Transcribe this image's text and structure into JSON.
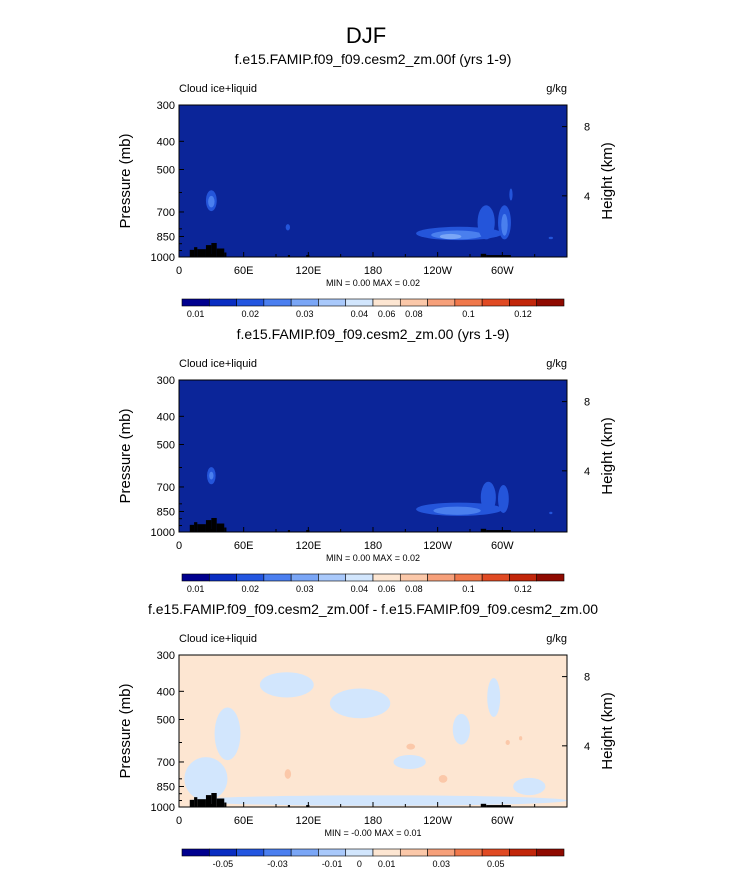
{
  "figure": {
    "title": "DJF"
  },
  "chart_data": [
    {
      "type": "heatmap",
      "title": "f.e15.FAMIP.f09_f09.cesm2_zm.00f (yrs 1-9)",
      "left_label": "Cloud ice+liquid",
      "right_label": "g/kg",
      "ylabel": "Pressure (mb)",
      "y2label": "Height (km)",
      "yticks": [
        "300",
        "400",
        "500",
        "700",
        "850",
        "1000"
      ],
      "y2ticks": [
        "8",
        "4"
      ],
      "xticks": [
        "0",
        "60E",
        "120E",
        "180",
        "120W",
        "60W"
      ],
      "stats": "MIN =   0.00  MAX =   0.02",
      "colorbar": {
        "labels": [
          "0.01",
          "0.02",
          "0.03",
          "0.04",
          "0.06",
          "0.08",
          "0.1",
          "0.12"
        ],
        "colors": [
          "#00008f",
          "#0a2ec2",
          "#2356e0",
          "#4b7ff0",
          "#7aa6f6",
          "#a9c9fb",
          "#d2e6fd",
          "#fde6d2",
          "#fbc8a9",
          "#f6a07a",
          "#f0784b",
          "#e04a23",
          "#c2260a",
          "#8f0a00"
        ]
      },
      "background": "#0b2599",
      "features": [
        {
          "type": "blob",
          "lon": 30,
          "p": 640,
          "rx_deg": 5,
          "rp": 55,
          "color": "#2455da"
        },
        {
          "type": "blob",
          "lon": 30,
          "p": 645,
          "rx_deg": 3,
          "rp": 30,
          "color": "#4a7fee"
        },
        {
          "type": "blob",
          "lon": 101,
          "p": 790,
          "rx_deg": 2,
          "rp": 20,
          "color": "#2455da"
        },
        {
          "type": "blob",
          "lon": 260,
          "p": 830,
          "rx_deg": 40,
          "rp": 45,
          "color": "#2455da"
        },
        {
          "type": "blob",
          "lon": 258,
          "p": 840,
          "rx_deg": 24,
          "rp": 30,
          "color": "#4a7fee"
        },
        {
          "type": "blob",
          "lon": 252,
          "p": 850,
          "rx_deg": 10,
          "rp": 18,
          "color": "#7aa6f6"
        },
        {
          "type": "blob",
          "lon": 285,
          "p": 760,
          "rx_deg": 8,
          "rp": 110,
          "color": "#2455da"
        },
        {
          "type": "blob",
          "lon": 302,
          "p": 760,
          "rx_deg": 6,
          "rp": 110,
          "color": "#2455da"
        },
        {
          "type": "blob",
          "lon": 302,
          "p": 775,
          "rx_deg": 3,
          "rp": 70,
          "color": "#4a7fee"
        },
        {
          "type": "blob",
          "lon": 308,
          "p": 610,
          "rx_deg": 1.5,
          "rp": 30,
          "color": "#2455da"
        },
        {
          "type": "blob",
          "lon": 345,
          "p": 860,
          "rx_deg": 2,
          "rp": 8,
          "color": "#2455da"
        }
      ]
    },
    {
      "type": "heatmap",
      "title": "f.e15.FAMIP.f09_f09.cesm2_zm.00 (yrs 1-9)",
      "left_label": "Cloud ice+liquid",
      "right_label": "g/kg",
      "ylabel": "Pressure (mb)",
      "y2label": "Height (km)",
      "yticks": [
        "300",
        "400",
        "500",
        "700",
        "850",
        "1000"
      ],
      "y2ticks": [
        "8",
        "4"
      ],
      "xticks": [
        "0",
        "60E",
        "120E",
        "180",
        "120W",
        "60W"
      ],
      "stats": "MIN =   0.00  MAX =   0.02",
      "colorbar": {
        "labels": [
          "0.01",
          "0.02",
          "0.03",
          "0.04",
          "0.06",
          "0.08",
          "0.1",
          "0.12"
        ],
        "colors": [
          "#00008f",
          "#0a2ec2",
          "#2356e0",
          "#4b7ff0",
          "#7aa6f6",
          "#a9c9fb",
          "#d2e6fd",
          "#fde6d2",
          "#fbc8a9",
          "#f6a07a",
          "#f0784b",
          "#e04a23",
          "#c2260a",
          "#8f0a00"
        ]
      },
      "background": "#0b2599",
      "features": [
        {
          "type": "blob",
          "lon": 30,
          "p": 640,
          "rx_deg": 4,
          "rp": 45,
          "color": "#2455da"
        },
        {
          "type": "blob",
          "lon": 30,
          "p": 640,
          "rx_deg": 2,
          "rp": 20,
          "color": "#4a7fee"
        },
        {
          "type": "blob",
          "lon": 260,
          "p": 835,
          "rx_deg": 40,
          "rp": 45,
          "color": "#2455da"
        },
        {
          "type": "blob",
          "lon": 258,
          "p": 845,
          "rx_deg": 22,
          "rp": 28,
          "color": "#4a7fee"
        },
        {
          "type": "blob",
          "lon": 287,
          "p": 760,
          "rx_deg": 7,
          "rp": 100,
          "color": "#2455da"
        },
        {
          "type": "blob",
          "lon": 301,
          "p": 770,
          "rx_deg": 5,
          "rp": 90,
          "color": "#2455da"
        },
        {
          "type": "blob",
          "lon": 345,
          "p": 860,
          "rx_deg": 1.5,
          "rp": 8,
          "color": "#2455da"
        }
      ]
    },
    {
      "type": "heatmap",
      "title": "f.e15.FAMIP.f09_f09.cesm2_zm.00f - f.e15.FAMIP.f09_f09.cesm2_zm.00",
      "left_label": "Cloud ice+liquid",
      "right_label": "g/kg",
      "ylabel": "Pressure (mb)",
      "y2label": "Height (km)",
      "yticks": [
        "300",
        "400",
        "500",
        "700",
        "850",
        "1000"
      ],
      "y2ticks": [
        "8",
        "4"
      ],
      "xticks": [
        "0",
        "60E",
        "120E",
        "180",
        "120W",
        "60W"
      ],
      "stats": "MIN =  -0.00  MAX =   0.01",
      "colorbar": {
        "labels": [
          "-0.05",
          "-0.03",
          "-0.01",
          "0",
          "0.01",
          "0.03",
          "0.05"
        ],
        "colors": [
          "#00008f",
          "#0a2ec2",
          "#2356e0",
          "#4b7ff0",
          "#7aa6f6",
          "#a9c9fb",
          "#d2e6fd",
          "#fde6d2",
          "#fbc8a9",
          "#f6a07a",
          "#f0784b",
          "#e04a23",
          "#c2260a",
          "#8f0a00"
        ]
      },
      "background": "#fde6d2",
      "features": [
        {
          "type": "blob",
          "lon": 185,
          "p": 950,
          "rx_deg": 175,
          "rp": 40,
          "color": "#d2e6fd"
        },
        {
          "type": "blob",
          "lon": 45,
          "p": 560,
          "rx_deg": 12,
          "rp": 130,
          "color": "#d2e6fd"
        },
        {
          "type": "blob",
          "lon": 25,
          "p": 800,
          "rx_deg": 20,
          "rp": 150,
          "color": "#d2e6fd"
        },
        {
          "type": "blob",
          "lon": 100,
          "p": 380,
          "rx_deg": 25,
          "rp": 40,
          "color": "#d2e6fd"
        },
        {
          "type": "blob",
          "lon": 168,
          "p": 440,
          "rx_deg": 28,
          "rp": 55,
          "color": "#d2e6fd"
        },
        {
          "type": "blob",
          "lon": 262,
          "p": 540,
          "rx_deg": 8,
          "rp": 70,
          "color": "#d2e6fd"
        },
        {
          "type": "blob",
          "lon": 292,
          "p": 420,
          "rx_deg": 6,
          "rp": 70,
          "color": "#d2e6fd"
        },
        {
          "type": "blob",
          "lon": 214,
          "p": 700,
          "rx_deg": 15,
          "rp": 40,
          "color": "#d2e6fd"
        },
        {
          "type": "blob",
          "lon": 325,
          "p": 850,
          "rx_deg": 15,
          "rp": 60,
          "color": "#d2e6fd"
        },
        {
          "type": "blob",
          "lon": 101,
          "p": 770,
          "rx_deg": 3,
          "rp": 30,
          "color": "#fbc8a9"
        },
        {
          "type": "blob",
          "lon": 245,
          "p": 800,
          "rx_deg": 4,
          "rp": 25,
          "color": "#fbc8a9"
        },
        {
          "type": "blob",
          "lon": 215,
          "p": 620,
          "rx_deg": 4,
          "rp": 15,
          "color": "#fbc8a9"
        },
        {
          "type": "blob",
          "lon": 305,
          "p": 600,
          "rx_deg": 2,
          "rp": 12,
          "color": "#fbc8a9"
        },
        {
          "type": "blob",
          "lon": 317,
          "p": 580,
          "rx_deg": 1.5,
          "rp": 10,
          "color": "#fbc8a9"
        }
      ]
    }
  ]
}
